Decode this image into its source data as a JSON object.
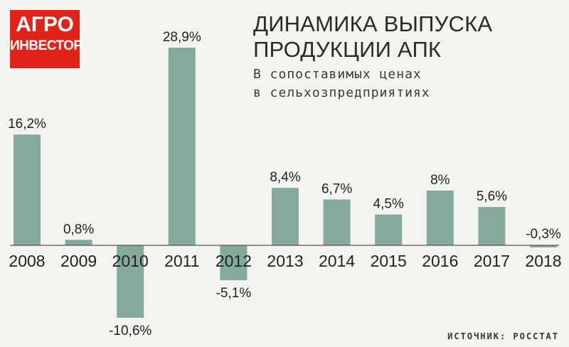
{
  "logo": {
    "line1": "АГРО",
    "line2": "ИНВЕСТОР",
    "color": "#e2231a"
  },
  "title": {
    "line1": "ДИНАМИКА ВЫПУСКА",
    "line2": "ПРОДУКЦИИ АПК"
  },
  "subtitle": {
    "line1": "В сопоставимых ценах",
    "line2": "в сельхозпредприятиях"
  },
  "source": "ИСТОЧНИК: РОССТАТ",
  "colors": {
    "bar": "#85a99c",
    "background": "#f3f3f0"
  },
  "chart_data": {
    "type": "bar",
    "categories": [
      "2008",
      "2009",
      "2010",
      "2011",
      "2012",
      "2013",
      "2014",
      "2015",
      "2016",
      "2017",
      "2018"
    ],
    "values": [
      16.2,
      0.8,
      -10.6,
      28.9,
      -5.1,
      8.4,
      6.7,
      4.5,
      8,
      5.6,
      -0.3
    ],
    "value_labels": [
      "16,2%",
      "0,8%",
      "-10,6%",
      "28,9%",
      "-5,1%",
      "8,4%",
      "6,7%",
      "4,5%",
      "8%",
      "5,6%",
      "-0,3%"
    ],
    "title": "ДИНАМИКА ВЫПУСКА ПРОДУКЦИИ АПК",
    "subtitle": "В сопоставимых ценах в сельхозпредприятиях",
    "xlabel": "",
    "ylabel": "",
    "ylim": [
      -10.6,
      28.9
    ],
    "grid": false,
    "legend": "none"
  }
}
